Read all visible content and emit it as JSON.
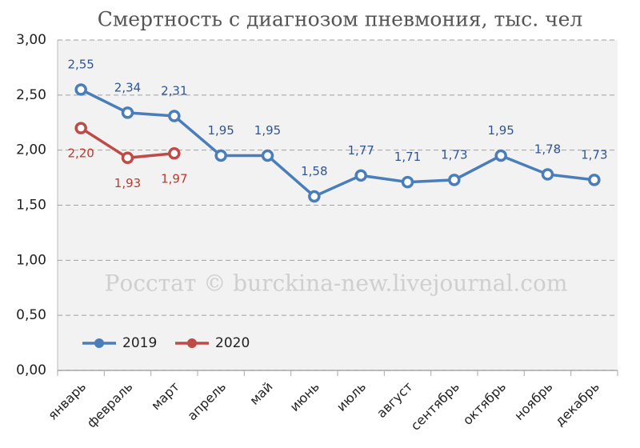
{
  "chart_data": {
    "type": "line",
    "title": "Смертность с диагнозом пневмония, тыс. чел",
    "annotation": "Росстат © burckina-new.livejournal.com",
    "categories": [
      "январь",
      "февраль",
      "март",
      "апрель",
      "май",
      "июнь",
      "июль",
      "август",
      "сентябрь",
      "октябрь",
      "ноябрь",
      "декабрь"
    ],
    "series": [
      {
        "name": "2019",
        "color": "#4a7ebb",
        "label_color": "#2f5597",
        "values": [
          2.55,
          2.34,
          2.31,
          1.95,
          1.95,
          1.58,
          1.77,
          1.71,
          1.73,
          1.95,
          1.78,
          1.73
        ],
        "value_labels": [
          "2,55",
          "2,34",
          "2,31",
          "1,95",
          "1,95",
          "1,58",
          "1,77",
          "1,71",
          "1,73",
          "1,95",
          "1,78",
          "1,73"
        ]
      },
      {
        "name": "2020",
        "color": "#be4b48",
        "label_color": "#c0392b",
        "values": [
          2.2,
          1.93,
          1.97,
          null,
          null,
          null,
          null,
          null,
          null,
          null,
          null,
          null
        ],
        "value_labels": [
          "2,20",
          "1,93",
          "1,97",
          null,
          null,
          null,
          null,
          null,
          null,
          null,
          null,
          null
        ]
      }
    ],
    "ylim": [
      0,
      3
    ],
    "yticks": [
      {
        "value": 0,
        "label": "0,00"
      },
      {
        "value": 0.5,
        "label": "0,50"
      },
      {
        "value": 1,
        "label": "1,00"
      },
      {
        "value": 1.5,
        "label": "1,50"
      },
      {
        "value": 2,
        "label": "2,00"
      },
      {
        "value": 2.5,
        "label": "2,50"
      },
      {
        "value": 3,
        "label": "3,00"
      }
    ],
    "grid": true,
    "legend": "lower left"
  }
}
